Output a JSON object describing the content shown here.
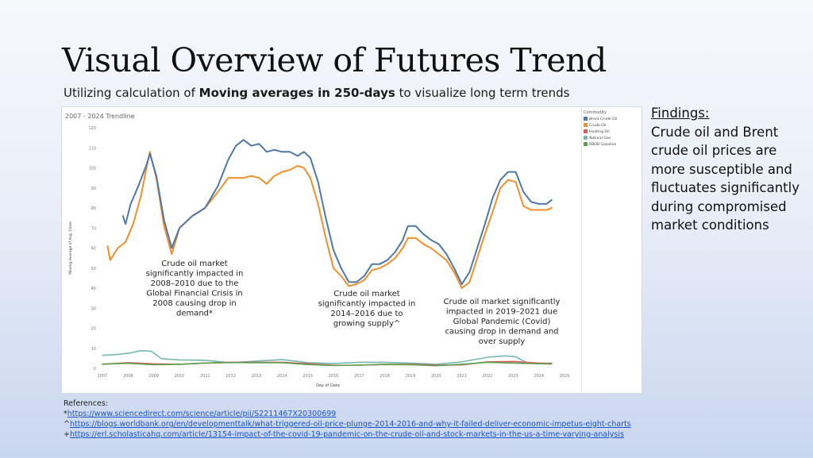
{
  "slide": {
    "title": "Visual Overview of Futures Trend",
    "subtitle_pre": "Utilizing calculation of ",
    "subtitle_bold": "Moving averages in 250-days",
    "subtitle_post": " to visualize long term trends"
  },
  "findings": {
    "heading": "Findings:",
    "body": "Crude oil and Brent crude oil prices are more susceptible and fluctuates significantly during compromised market conditions"
  },
  "references": {
    "heading": "References:",
    "items": [
      {
        "marker": "*",
        "url": "https://www.sciencedirect.com/science/article/pii/S2211467X20300699"
      },
      {
        "marker": "^",
        "url": "https://blogs.worldbank.org/en/developmenttalk/what-triggered-oil-price-plunge-2014-2016-and-why-it-failed-deliver-economic-impetus-eight-charts"
      },
      {
        "marker": "+",
        "url": "https://erl.scholasticahq.com/article/13154-impact-of-the-covid-19-pandemic-on-the-crude-oil-and-stock-markets-in-the-us-a-time-varying-analysis"
      }
    ]
  },
  "chart_data": {
    "type": "line",
    "title": "2007 - 2024 Trendline",
    "xlabel": "Day of Date",
    "ylabel": "Moving Average of Avg. Close",
    "xlim": [
      2007,
      2025
    ],
    "ylim": [
      0,
      120
    ],
    "x_ticks": [
      2007,
      2008,
      2009,
      2010,
      2011,
      2012,
      2013,
      2014,
      2015,
      2016,
      2017,
      2018,
      2019,
      2020,
      2021,
      2022,
      2023,
      2024,
      2025
    ],
    "y_ticks": [
      0,
      10,
      20,
      30,
      40,
      50,
      60,
      70,
      80,
      90,
      100,
      110,
      120
    ],
    "legend_title": "Commodity",
    "legend_placement": "right",
    "grid": false,
    "series": [
      {
        "name": "Brent Crude Oil",
        "color": "#4e79a7",
        "x": [
          2007.8,
          2007.9,
          2008.1,
          2008.4,
          2008.7,
          2008.85,
          2009.1,
          2009.4,
          2009.7,
          2010.0,
          2010.5,
          2011.0,
          2011.5,
          2011.9,
          2012.2,
          2012.5,
          2012.8,
          2013.1,
          2013.4,
          2013.7,
          2014.0,
          2014.3,
          2014.6,
          2014.85,
          2015.1,
          2015.4,
          2015.7,
          2016.0,
          2016.3,
          2016.6,
          2016.9,
          2017.2,
          2017.5,
          2017.8,
          2018.1,
          2018.4,
          2018.7,
          2018.9,
          2019.2,
          2019.5,
          2019.8,
          2020.1,
          2020.4,
          2020.7,
          2021.0,
          2021.3,
          2021.6,
          2021.9,
          2022.2,
          2022.5,
          2022.8,
          2023.1,
          2023.4,
          2023.7,
          2024.0,
          2024.3,
          2024.5
        ],
        "y": [
          76,
          72,
          82,
          91,
          101,
          107,
          96,
          74,
          60,
          70,
          76,
          80,
          91,
          104,
          111,
          114,
          111,
          112,
          108,
          109,
          108,
          108,
          106,
          108,
          105,
          93,
          75,
          59,
          50,
          43,
          43,
          46,
          52,
          52,
          54,
          58,
          64,
          71,
          71,
          67,
          64,
          62,
          57,
          50,
          42,
          48,
          60,
          72,
          85,
          94,
          98,
          98,
          88,
          83,
          82,
          82,
          84
        ]
      },
      {
        "name": "Crude Oil",
        "color": "#f28e2b",
        "x": [
          2007.2,
          2007.3,
          2007.6,
          2007.9,
          2008.2,
          2008.5,
          2008.7,
          2008.85,
          2009.1,
          2009.4,
          2009.7,
          2010.0,
          2010.5,
          2011.0,
          2011.5,
          2011.9,
          2012.2,
          2012.5,
          2012.8,
          2013.1,
          2013.4,
          2013.7,
          2014.0,
          2014.3,
          2014.6,
          2014.85,
          2015.1,
          2015.4,
          2015.7,
          2016.0,
          2016.3,
          2016.6,
          2016.9,
          2017.2,
          2017.5,
          2017.8,
          2018.1,
          2018.4,
          2018.7,
          2018.9,
          2019.2,
          2019.5,
          2019.8,
          2020.1,
          2020.4,
          2020.7,
          2021.0,
          2021.3,
          2021.6,
          2021.9,
          2022.2,
          2022.5,
          2022.8,
          2023.1,
          2023.4,
          2023.7,
          2024.0,
          2024.3,
          2024.5
        ],
        "y": [
          61,
          54,
          60,
          63,
          72,
          86,
          99,
          108,
          95,
          71,
          57,
          70,
          76,
          80,
          88,
          95,
          95,
          95,
          96,
          95,
          92,
          96,
          98,
          99,
          101,
          100,
          95,
          82,
          65,
          50,
          46,
          41,
          42,
          44,
          49,
          50,
          52,
          55,
          60,
          65,
          65,
          62,
          60,
          57,
          54,
          48,
          40,
          43,
          55,
          67,
          78,
          90,
          94,
          93,
          81,
          79,
          79,
          79,
          80
        ]
      },
      {
        "name": "Heating Oil",
        "color": "#e15759",
        "x": [
          2007,
          2008,
          2009,
          2010,
          2011,
          2012,
          2013,
          2014,
          2015,
          2016,
          2017,
          2018,
          2019,
          2020,
          2021,
          2022,
          2023,
          2024,
          2024.5
        ],
        "y": [
          2.0,
          2.8,
          2.2,
          2.0,
          2.6,
          3.0,
          3.0,
          3.0,
          2.3,
          1.5,
          1.6,
          2.0,
          2.0,
          1.6,
          1.7,
          3.2,
          3.4,
          2.6,
          2.5
        ]
      },
      {
        "name": "Natural Gas",
        "color": "#76b7b2",
        "x": [
          2007,
          2007.5,
          2008,
          2008.5,
          2008.9,
          2009.3,
          2010,
          2011,
          2012,
          2013,
          2014,
          2015,
          2016,
          2017,
          2018,
          2019,
          2020,
          2021,
          2022,
          2022.7,
          2023.1,
          2023.5,
          2024,
          2024.5
        ],
        "y": [
          6.5,
          6.8,
          7.5,
          8.8,
          8.5,
          4.8,
          4.2,
          4.0,
          2.8,
          3.6,
          4.3,
          2.8,
          2.4,
          3.0,
          3.0,
          2.6,
          2.0,
          3.2,
          5.5,
          6.2,
          5.8,
          3.0,
          2.3,
          2.2
        ]
      },
      {
        "name": "RBOB Gasoline",
        "color": "#59a14f",
        "x": [
          2007,
          2008,
          2009,
          2010,
          2011,
          2012,
          2013,
          2014,
          2015,
          2016,
          2017,
          2018,
          2019,
          2020,
          2021,
          2022,
          2023,
          2024,
          2024.5
        ],
        "y": [
          2.1,
          2.5,
          1.8,
          2.0,
          2.6,
          2.9,
          2.8,
          2.8,
          1.9,
          1.4,
          1.6,
          1.9,
          1.8,
          1.3,
          2.0,
          3.0,
          2.6,
          2.3,
          2.2
        ]
      }
    ],
    "annotations": [
      {
        "lines": [
          "Crude oil market",
          "significantly impacted in",
          "2008–2010 due to the",
          "Global Financial Crisis in",
          "2008 causing drop in",
          "demand*"
        ]
      },
      {
        "lines": [
          "Crude oil market",
          "significantly impacted in",
          "2014–2016 due to",
          "growing supply^"
        ]
      },
      {
        "lines": [
          "Crude oil market significantly",
          "impacted in 2019–2021 due",
          "Global Pandemic (Covid)",
          "causing drop in demand and",
          "over supply"
        ]
      }
    ]
  }
}
